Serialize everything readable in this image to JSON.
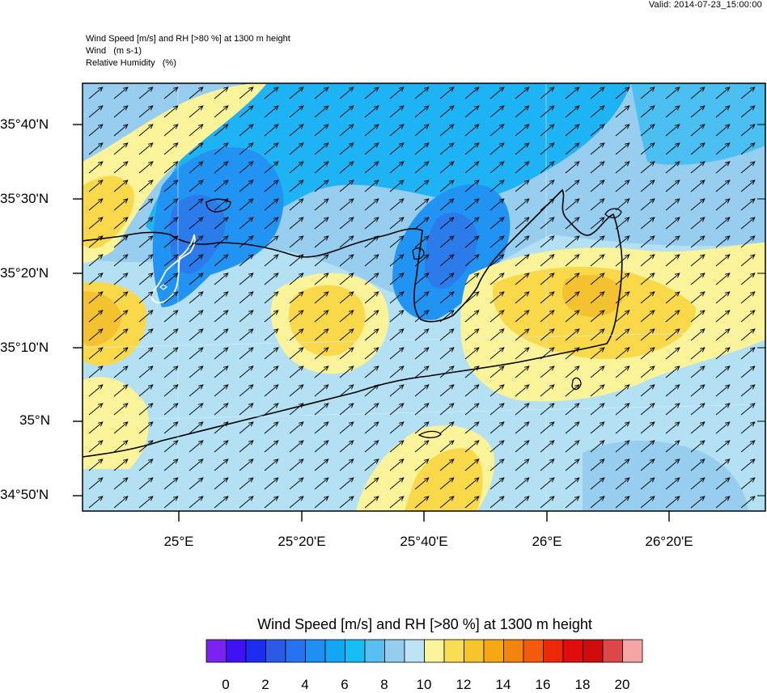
{
  "header": {
    "valid": "Valid: 2014-07-23_15:00:00",
    "line1": "Wind Speed [m/s] and RH [>80 %] at 1300 m height",
    "line2": "Wind   (m s-1)",
    "line3": "Relative Humidity   (%)"
  },
  "map": {
    "lat_labels": [
      "35°40'N",
      "35°30'N",
      "35°20'N",
      "35°10'N",
      "35°N",
      "34°50'N"
    ],
    "lon_labels": [
      "25°E",
      "25°20'E",
      "25°40'E",
      "26°E",
      "26°20'E"
    ],
    "wind_direction_deg": 40,
    "colors": {
      "sea_background": "#b3e0f3",
      "light_blue": "#97cdee",
      "mid_blue": "#1eb3f5",
      "deep_blue": "#2193f2",
      "darker_blue": "#2b7bea",
      "pale_yellow": "#fbf39a",
      "yellow": "#f9d84a",
      "orange_yellow": "#f4c230",
      "coast": "#000000",
      "rh_contour": "#ffffff"
    }
  },
  "colorbar": {
    "title": "Wind Speed [m/s] and RH [>80 %] at 1300 m height",
    "colors": [
      "#7a22f0",
      "#3e12f5",
      "#1c2df0",
      "#2c59e8",
      "#2673f2",
      "#1d8ff2",
      "#13a6f4",
      "#16bdf7",
      "#58bff0",
      "#95cdee",
      "#bde4f5",
      "#fbf39a",
      "#f8dd55",
      "#f6c52e",
      "#f6a812",
      "#f4850c",
      "#f35a0a",
      "#ec270a",
      "#e10d0d",
      "#cf0c0c",
      "#dc4747",
      "#f5a5a5"
    ],
    "labels": [
      "0",
      "2",
      "4",
      "6",
      "8",
      "10",
      "12",
      "14",
      "16",
      "18",
      "20"
    ]
  }
}
